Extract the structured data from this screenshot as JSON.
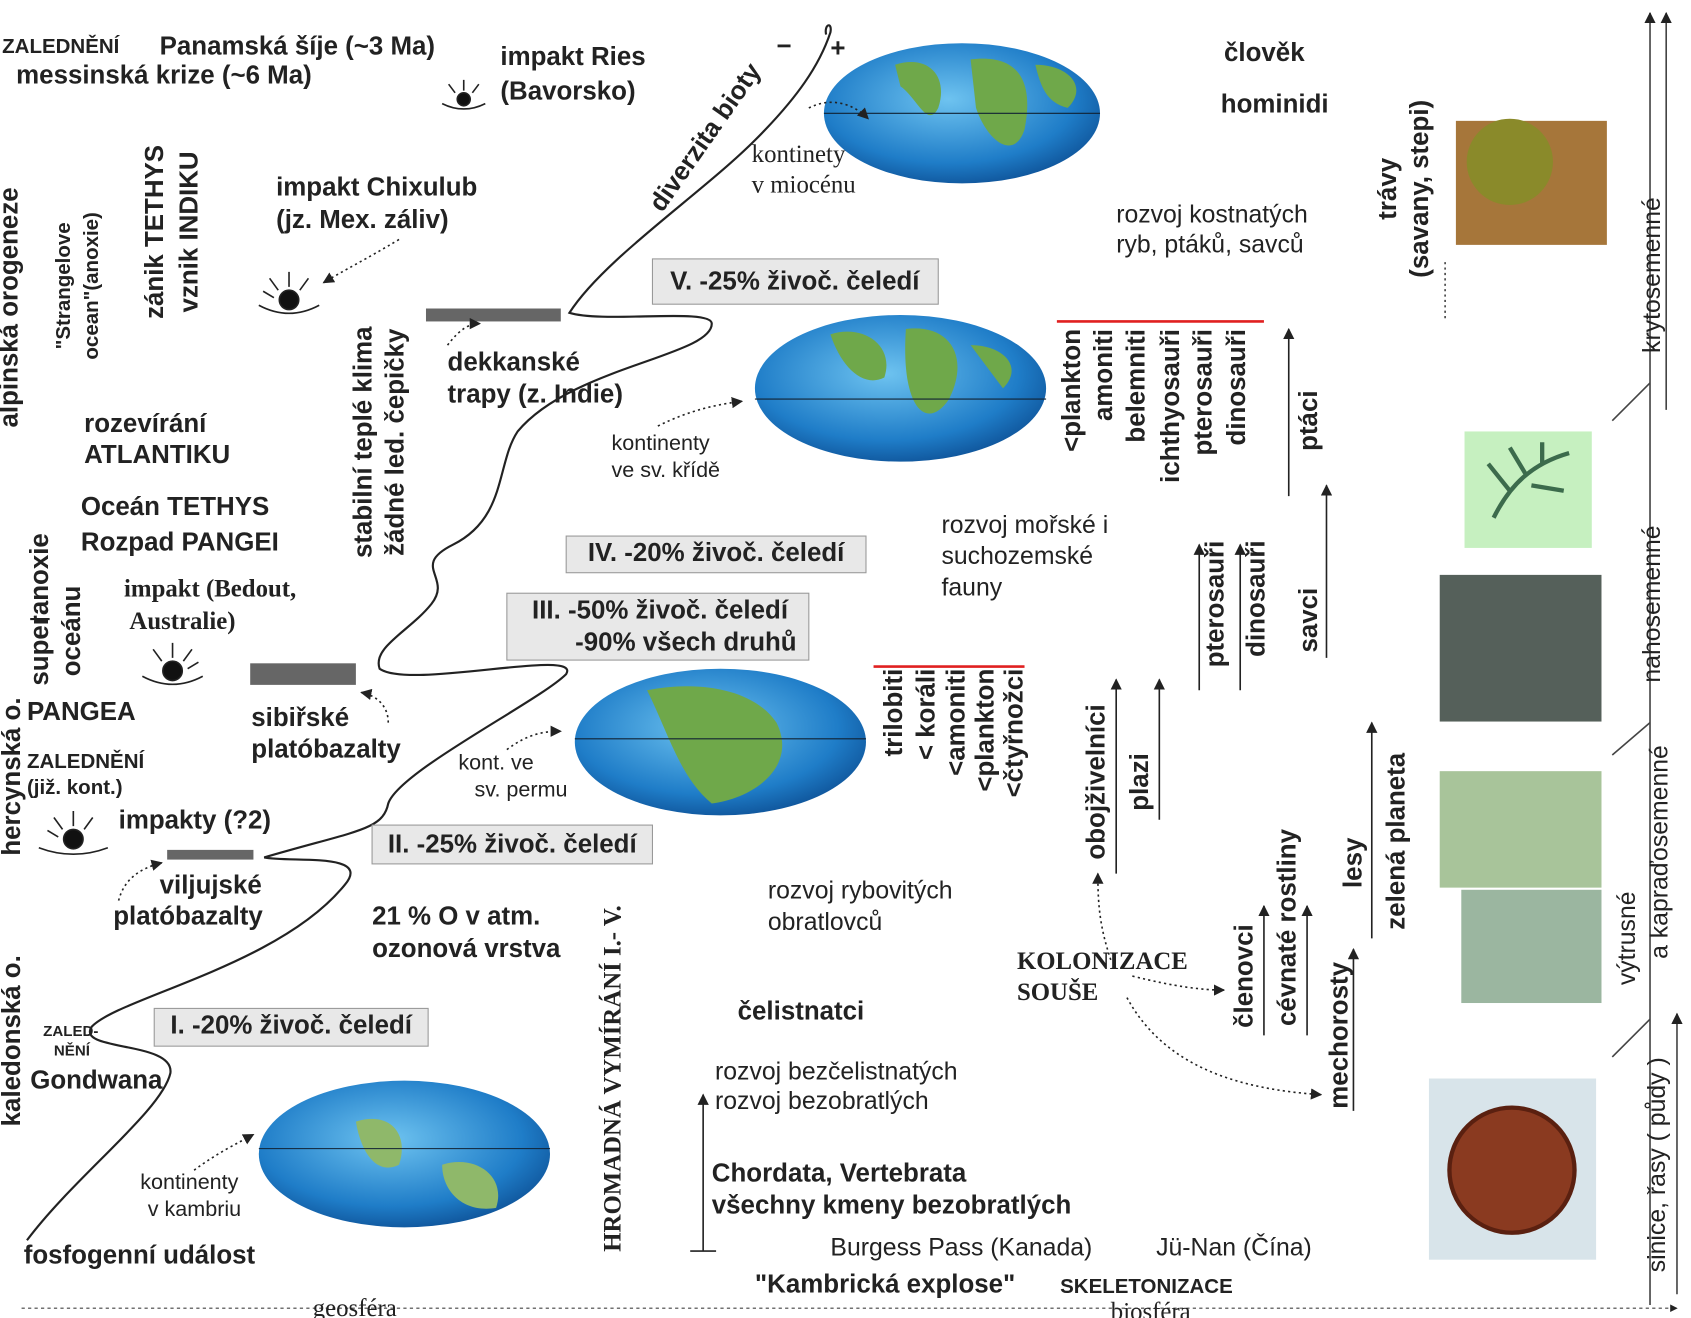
{
  "labels": [
    "ZALEDNĚNÍ",
    "Panamská šíje (~3 Ma)",
    "messinská krize (~6 Ma)",
    "impakt Ries",
    "(Bavorsko)",
    "diverzita bioty",
    "−",
    "+",
    "kontinety",
    "v miocénu",
    "člověk",
    "hominidi",
    "rozvoj kostnatých",
    "ryb, ptáků, savců",
    "trávy",
    "(savany, stepi)",
    "krytosemenné",
    "alpinská orogeneze",
    "\"Strangelove",
    "ocean\"(anoxie)",
    "zánik TETHYS",
    "vznik INDIKU",
    "impakt Chixulub",
    "(jz. Mex. záliv)",
    "stabilní teplé klima",
    "žádné led. čepičky",
    "V. -25% živoč. čeledí",
    "dekkanské",
    "trapy (z. Indie)",
    "kontinenty",
    "ve sv. křídě",
    "rozevírání",
    "ATLANTIKU",
    "Oceán TETHYS",
    "Rozpad PANGEI",
    "<plankton",
    "amoniti",
    "belemniti",
    "ichthyosauři",
    "pterosauři",
    "dinosauři",
    "ptáci",
    "rozvoj mořské i",
    "suchozemské",
    "fauny",
    "IV. -20% živoč. čeledí",
    "pterosauři",
    "dinosauři",
    "savci",
    "superanoxie",
    "oceánu",
    "impakt (Bedout,",
    "Australie)",
    "III. -50% živoč. čeledí",
    "-90% všech druhů",
    "PANGEA",
    "sibiřské",
    "platóbazalty",
    "kont. ve",
    "sv. permu",
    "trilobiti",
    "< koráli",
    "<amoniti",
    "<plankton",
    "<čtyřnožci",
    "obojživelníci",
    "plazi",
    "lesy",
    "zelená planeta",
    "hercynská o.",
    "ZALEDNĚNÍ",
    "(již. kont.)",
    "impakty (?2)",
    "II. -25% živoč. čeledí",
    "viljujské",
    "platóbazalty",
    "21 % O  v atm.",
    "ozonová vrstva",
    "HROMADNÁ VYMÍRÁNÍ  I.- V.",
    "rozvoj rybovitých",
    "obratlovců",
    "KOLONIZACE",
    "SOUŠE",
    "členovci",
    "cévnaté rostliny",
    "mechorosty",
    "výtrusné",
    "a kapraďosemenné",
    "nahosemenné",
    "kaledonská o.",
    "ZALED-",
    "NĚNÍ",
    "Gondwana",
    "I. -20% živoč. čeledí",
    "čelistnatci",
    "rozvoj bezčelistnatých",
    "rozvoj bezobratlých",
    "kontinenty",
    "v kambriu",
    "Chordata, Vertebrata",
    "všechny kmeny bezobratlých",
    "fosfogenní událost",
    "Burgess Pass (Kanada)",
    "Jü-Nan (Čína)",
    "\"Kambrická explose\"",
    "SKELETONIZACE",
    "sinice, řasy ( půdy )",
    "geosféra",
    "biosféra"
  ]
}
